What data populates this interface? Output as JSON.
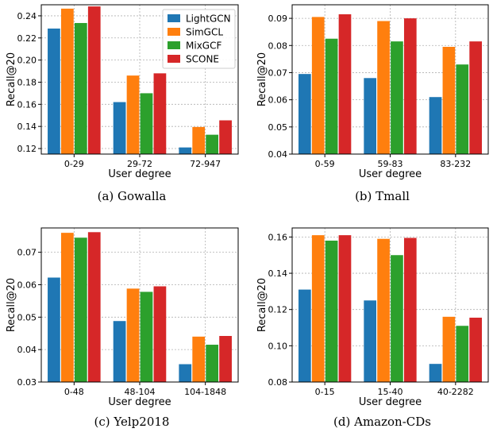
{
  "colors": {
    "LightGCN": "#1f77b4",
    "SimGCL": "#ff7f0e",
    "MixGCF": "#2ca02c",
    "SCONE": "#d62728"
  },
  "chart_data": [
    {
      "type": "bar",
      "caption": "(a)  Gowalla",
      "xlabel": "User degree",
      "ylabel": "Recall@20",
      "categories": [
        "0-29",
        "29-72",
        "72-947"
      ],
      "ylim": [
        0.115,
        0.25
      ],
      "yticks": [
        0.12,
        0.14,
        0.16,
        0.18,
        0.2,
        0.22,
        0.24
      ],
      "ytick_labels": [
        "0.12",
        "0.14",
        "0.16",
        "0.18",
        "0.20",
        "0.22",
        "0.24"
      ],
      "grid": true,
      "legend": "top-right",
      "series": [
        {
          "name": "LightGCN",
          "values": [
            0.2285,
            0.162,
            0.121
          ]
        },
        {
          "name": "SimGCL",
          "values": [
            0.2465,
            0.186,
            0.1395
          ]
        },
        {
          "name": "MixGCF",
          "values": [
            0.2335,
            0.17,
            0.1325
          ]
        },
        {
          "name": "SCONE",
          "values": [
            0.2485,
            0.188,
            0.1455
          ]
        }
      ]
    },
    {
      "type": "bar",
      "caption": "(b)  Tmall",
      "xlabel": "User degree",
      "ylabel": "Recall@20",
      "categories": [
        "0-59",
        "59-83",
        "83-232"
      ],
      "ylim": [
        0.04,
        0.095
      ],
      "yticks": [
        0.04,
        0.05,
        0.06,
        0.07,
        0.08,
        0.09
      ],
      "ytick_labels": [
        "0.04",
        "0.05",
        "0.06",
        "0.07",
        "0.08",
        "0.09"
      ],
      "grid": true,
      "series": [
        {
          "name": "LightGCN",
          "values": [
            0.0695,
            0.068,
            0.061
          ]
        },
        {
          "name": "SimGCL",
          "values": [
            0.0905,
            0.089,
            0.0795
          ]
        },
        {
          "name": "MixGCF",
          "values": [
            0.0825,
            0.0815,
            0.073
          ]
        },
        {
          "name": "SCONE",
          "values": [
            0.0915,
            0.09,
            0.0815
          ]
        }
      ]
    },
    {
      "type": "bar",
      "caption": "(c)  Yelp2018",
      "xlabel": "User degree",
      "ylabel": "Recall@20",
      "categories": [
        "0-48",
        "48-104",
        "104-1848"
      ],
      "ylim": [
        0.03,
        0.0775
      ],
      "yticks": [
        0.03,
        0.04,
        0.05,
        0.06,
        0.07
      ],
      "ytick_labels": [
        "0.03",
        "0.04",
        "0.05",
        "0.06",
        "0.07"
      ],
      "grid": true,
      "series": [
        {
          "name": "LightGCN",
          "values": [
            0.0622,
            0.0488,
            0.0355
          ]
        },
        {
          "name": "SimGCL",
          "values": [
            0.076,
            0.0588,
            0.044
          ]
        },
        {
          "name": "MixGCF",
          "values": [
            0.0745,
            0.0578,
            0.0415
          ]
        },
        {
          "name": "SCONE",
          "values": [
            0.0762,
            0.0595,
            0.0442
          ]
        }
      ]
    },
    {
      "type": "bar",
      "caption": "(d)  Amazon-CDs",
      "xlabel": "User degree",
      "ylabel": "Recall@20",
      "categories": [
        "0-15",
        "15-40",
        "40-2282"
      ],
      "ylim": [
        0.08,
        0.165
      ],
      "yticks": [
        0.08,
        0.1,
        0.12,
        0.14,
        0.16
      ],
      "ytick_labels": [
        "0.08",
        "0.10",
        "0.12",
        "0.14",
        "0.16"
      ],
      "grid": true,
      "series": [
        {
          "name": "LightGCN",
          "values": [
            0.131,
            0.125,
            0.09
          ]
        },
        {
          "name": "SimGCL",
          "values": [
            0.161,
            0.159,
            0.116
          ]
        },
        {
          "name": "MixGCF",
          "values": [
            0.158,
            0.15,
            0.111
          ]
        },
        {
          "name": "SCONE",
          "values": [
            0.161,
            0.1595,
            0.1155
          ]
        }
      ]
    }
  ]
}
